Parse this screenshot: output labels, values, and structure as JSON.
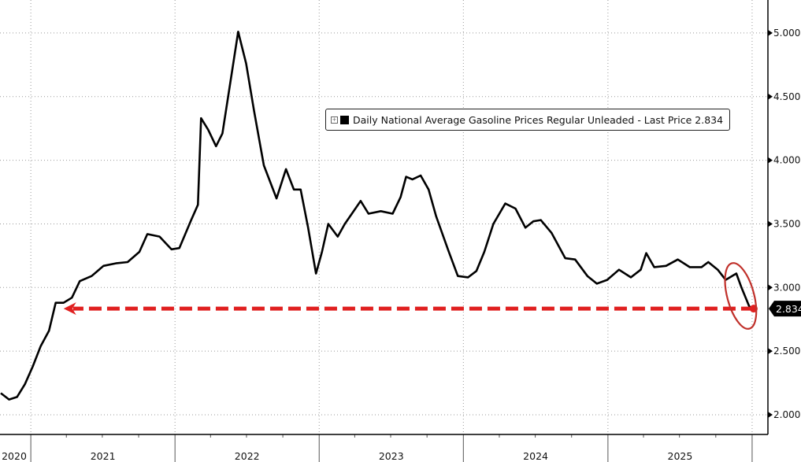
{
  "chart_data": {
    "type": "line",
    "title": "",
    "xlabel": "",
    "ylabel": "",
    "legend": {
      "text": "Daily National Average Gasoline Prices Regular Unleaded - Last Price 2.834",
      "placement": "top-center"
    },
    "last_price_label": "2.834",
    "ylim": [
      1.85,
      5.15
    ],
    "xlim": [
      "2020-10-15",
      "2026-02-10"
    ],
    "y_ticks": [
      2.0,
      2.5,
      3.0,
      3.5,
      4.0,
      4.5,
      5.0
    ],
    "y_tick_labels": [
      "2.000",
      "2.500",
      "3.000",
      "3.500",
      "4.000",
      "4.500",
      "5.000"
    ],
    "x_tick_labels": [
      "2020",
      "2021",
      "2022",
      "2023",
      "2024",
      "2025"
    ],
    "y_axis_side": "right",
    "grid": true,
    "colors": {
      "line": "#000000",
      "annotation": "#e02020",
      "ellipse": "#c0302a"
    },
    "annotations": [
      {
        "type": "dashed-arrow",
        "from": "2026-01-05",
        "to": "2021-03-25",
        "y": 2.834
      },
      {
        "type": "ellipse",
        "around": [
          "2025-10-15",
          "2026-01-05"
        ]
      }
    ],
    "series": [
      {
        "points": [
          [
            "2020-10-17",
            2.17
          ],
          [
            "2020-11-07",
            2.12
          ],
          [
            "2020-11-27",
            2.14
          ],
          [
            "2020-12-17",
            2.24
          ],
          [
            "2021-01-06",
            2.38
          ],
          [
            "2021-01-26",
            2.54
          ],
          [
            "2021-02-16",
            2.66
          ],
          [
            "2021-03-05",
            2.88
          ],
          [
            "2021-03-25",
            2.88
          ],
          [
            "2021-04-15",
            2.92
          ],
          [
            "2021-05-05",
            3.05
          ],
          [
            "2021-06-04",
            3.09
          ],
          [
            "2021-07-04",
            3.17
          ],
          [
            "2021-08-04",
            3.19
          ],
          [
            "2021-09-03",
            3.2
          ],
          [
            "2021-10-03",
            3.28
          ],
          [
            "2021-10-23",
            3.42
          ],
          [
            "2021-11-23",
            3.4
          ],
          [
            "2021-12-23",
            3.3
          ],
          [
            "2022-01-12",
            3.31
          ],
          [
            "2022-02-11",
            3.53
          ],
          [
            "2022-02-28",
            3.65
          ],
          [
            "2022-03-08",
            4.33
          ],
          [
            "2022-03-26",
            4.24
          ],
          [
            "2022-04-15",
            4.11
          ],
          [
            "2022-05-01",
            4.21
          ],
          [
            "2022-05-21",
            4.61
          ],
          [
            "2022-06-10",
            5.01
          ],
          [
            "2022-06-30",
            4.76
          ],
          [
            "2022-07-20",
            4.39
          ],
          [
            "2022-08-14",
            3.96
          ],
          [
            "2022-09-15",
            3.7
          ],
          [
            "2022-10-09",
            3.93
          ],
          [
            "2022-10-29",
            3.77
          ],
          [
            "2022-11-15",
            3.77
          ],
          [
            "2022-12-04",
            3.47
          ],
          [
            "2022-12-24",
            3.11
          ],
          [
            "2023-01-08",
            3.28
          ],
          [
            "2023-01-24",
            3.5
          ],
          [
            "2023-02-17",
            3.4
          ],
          [
            "2023-03-07",
            3.5
          ],
          [
            "2023-03-27",
            3.59
          ],
          [
            "2023-04-16",
            3.68
          ],
          [
            "2023-05-06",
            3.58
          ],
          [
            "2023-06-06",
            3.6
          ],
          [
            "2023-07-06",
            3.58
          ],
          [
            "2023-07-26",
            3.71
          ],
          [
            "2023-08-09",
            3.87
          ],
          [
            "2023-08-25",
            3.85
          ],
          [
            "2023-09-15",
            3.88
          ],
          [
            "2023-10-05",
            3.77
          ],
          [
            "2023-10-24",
            3.56
          ],
          [
            "2023-11-24",
            3.29
          ],
          [
            "2023-12-18",
            3.09
          ],
          [
            "2024-01-13",
            3.08
          ],
          [
            "2024-02-03",
            3.13
          ],
          [
            "2024-02-23",
            3.28
          ],
          [
            "2024-03-17",
            3.5
          ],
          [
            "2024-04-16",
            3.66
          ],
          [
            "2024-05-12",
            3.62
          ],
          [
            "2024-06-06",
            3.47
          ],
          [
            "2024-06-26",
            3.52
          ],
          [
            "2024-07-15",
            3.53
          ],
          [
            "2024-08-11",
            3.43
          ],
          [
            "2024-09-15",
            3.23
          ],
          [
            "2024-10-10",
            3.22
          ],
          [
            "2024-11-10",
            3.09
          ],
          [
            "2024-12-04",
            3.03
          ],
          [
            "2024-12-30",
            3.06
          ],
          [
            "2025-01-29",
            3.14
          ],
          [
            "2025-02-28",
            3.08
          ],
          [
            "2025-03-25",
            3.14
          ],
          [
            "2025-04-08",
            3.27
          ],
          [
            "2025-04-28",
            3.16
          ],
          [
            "2025-05-28",
            3.17
          ],
          [
            "2025-06-27",
            3.22
          ],
          [
            "2025-07-27",
            3.16
          ],
          [
            "2025-08-26",
            3.16
          ],
          [
            "2025-09-12",
            3.2
          ],
          [
            "2025-10-06",
            3.14
          ],
          [
            "2025-10-26",
            3.06
          ],
          [
            "2025-11-22",
            3.11
          ],
          [
            "2025-12-05",
            3.0
          ],
          [
            "2025-12-25",
            2.85
          ],
          [
            "2026-01-05",
            2.834
          ]
        ]
      }
    ]
  }
}
